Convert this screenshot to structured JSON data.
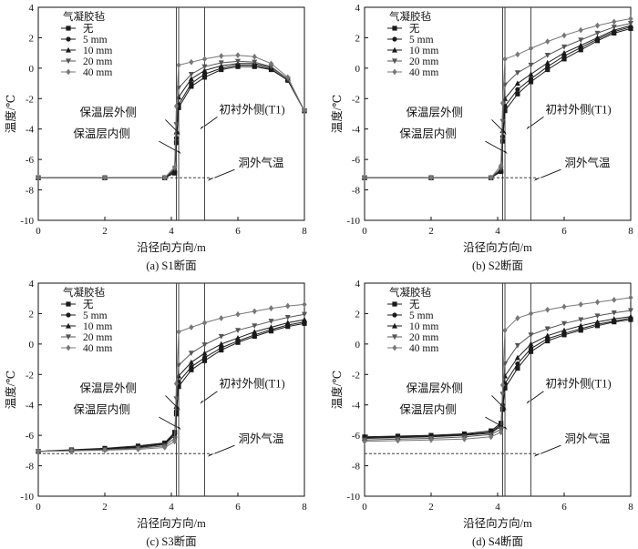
{
  "chart_data": [
    {
      "type": "line",
      "caption": "(a) S1断面",
      "xlabel": "沿径向方向/m",
      "ylabel": "温度/℃",
      "xlim": [
        0,
        8
      ],
      "ylim": [
        -10,
        4
      ],
      "xticks": [
        0,
        2,
        4,
        6,
        8
      ],
      "yticks": [
        -10,
        -8,
        -6,
        -4,
        -2,
        0,
        2,
        4
      ],
      "grid": false,
      "legend": {
        "title": "气凝胶毡",
        "placement": "top-left"
      },
      "vlines": [
        4.15,
        4.22,
        5.0
      ],
      "air_temp": -7.2,
      "annotations": [
        {
          "text": "保温层外侧",
          "point": [
            4.15,
            -4.1
          ]
        },
        {
          "text": "保温层内侧",
          "point": [
            4.12,
            -5.4
          ]
        },
        {
          "text": "初衬外侧(T1)",
          "point": [
            5.0,
            -3.8
          ]
        },
        {
          "text": "洞外气温",
          "point": [
            5.3,
            -7.2
          ]
        }
      ],
      "series": [
        {
          "name": "无",
          "marker": "square",
          "color": "#1a1a1a",
          "x": [
            0,
            2,
            3.8,
            4.1,
            4.15,
            4.22,
            4.6,
            5.0,
            5.5,
            6.0,
            6.5,
            7.0,
            7.5,
            8.0
          ],
          "y": [
            -7.2,
            -7.2,
            -7.2,
            -6.9,
            -4.9,
            -2.6,
            -1.2,
            -0.6,
            -0.1,
            0.1,
            0.1,
            -0.1,
            -0.8,
            -2.8
          ]
        },
        {
          "name": "5 mm",
          "marker": "circle",
          "color": "#1a1a1a",
          "x": [
            0,
            2,
            3.8,
            4.1,
            4.15,
            4.22,
            4.6,
            5.0,
            5.5,
            6.0,
            6.5,
            7.0,
            7.5,
            8.0
          ],
          "y": [
            -7.2,
            -7.2,
            -7.2,
            -6.8,
            -4.6,
            -2.4,
            -1.0,
            -0.4,
            0.0,
            0.2,
            0.2,
            -0.05,
            -0.8,
            -2.8
          ]
        },
        {
          "name": "10 mm",
          "marker": "triangle",
          "color": "#1a1a1a",
          "x": [
            0,
            2,
            3.8,
            4.1,
            4.15,
            4.22,
            4.6,
            5.0,
            5.5,
            6.0,
            6.5,
            7.0,
            7.5,
            8.0
          ],
          "y": [
            -7.2,
            -7.2,
            -7.2,
            -6.7,
            -4.2,
            -1.9,
            -0.7,
            -0.15,
            0.15,
            0.3,
            0.3,
            0.05,
            -0.7,
            -2.8
          ]
        },
        {
          "name": "20 mm",
          "marker": "triangle-down",
          "color": "#555555",
          "x": [
            0,
            2,
            3.8,
            4.1,
            4.15,
            4.22,
            4.6,
            5.0,
            5.5,
            6.0,
            6.5,
            7.0,
            7.5,
            8.0
          ],
          "y": [
            -7.2,
            -7.2,
            -7.2,
            -6.6,
            -3.7,
            -1.3,
            -0.4,
            0.1,
            0.35,
            0.45,
            0.4,
            0.1,
            -0.7,
            -2.8
          ]
        },
        {
          "name": "40 mm",
          "marker": "diamond",
          "color": "#777777",
          "x": [
            0,
            2,
            3.8,
            4.1,
            4.15,
            4.22,
            4.6,
            5.0,
            5.5,
            6.0,
            6.5,
            7.0,
            7.5,
            8.0
          ],
          "y": [
            -7.2,
            -7.2,
            -7.2,
            -6.5,
            -2.5,
            0.2,
            0.4,
            0.6,
            0.8,
            0.85,
            0.75,
            0.3,
            -0.6,
            -2.8
          ]
        }
      ]
    },
    {
      "type": "line",
      "caption": "(b) S2断面",
      "xlabel": "沿径向方向/m",
      "ylabel": "温度/℃",
      "xlim": [
        0,
        8
      ],
      "ylim": [
        -10,
        4
      ],
      "xticks": [
        0,
        2,
        4,
        6,
        8
      ],
      "yticks": [
        -10,
        -8,
        -6,
        -4,
        -2,
        0,
        2,
        4
      ],
      "grid": false,
      "legend": {
        "title": "气凝胶毡",
        "placement": "top-left"
      },
      "vlines": [
        4.15,
        4.22,
        5.0
      ],
      "air_temp": -7.2,
      "annotations": [
        {
          "text": "保温层外侧",
          "point": [
            4.15,
            -4.1
          ]
        },
        {
          "text": "保温层内侧",
          "point": [
            4.12,
            -5.4
          ]
        },
        {
          "text": "初衬外侧(T1)",
          "point": [
            5.0,
            -3.8
          ]
        },
        {
          "text": "洞外气温",
          "point": [
            5.3,
            -7.2
          ]
        }
      ],
      "series": [
        {
          "name": "无",
          "marker": "square",
          "color": "#1a1a1a",
          "x": [
            0,
            2,
            3.8,
            4.1,
            4.15,
            4.22,
            4.6,
            5.0,
            5.5,
            6.0,
            6.5,
            7.0,
            7.5,
            8.0
          ],
          "y": [
            -7.2,
            -7.2,
            -7.2,
            -6.8,
            -4.8,
            -2.8,
            -1.7,
            -0.9,
            -0.1,
            0.6,
            1.2,
            1.8,
            2.3,
            2.6
          ]
        },
        {
          "name": "5 mm",
          "marker": "circle",
          "color": "#1a1a1a",
          "x": [
            0,
            2,
            3.8,
            4.1,
            4.15,
            4.22,
            4.6,
            5.0,
            5.5,
            6.0,
            6.5,
            7.0,
            7.5,
            8.0
          ],
          "y": [
            -7.2,
            -7.2,
            -7.2,
            -6.8,
            -4.5,
            -2.5,
            -1.4,
            -0.7,
            0.1,
            0.8,
            1.35,
            1.9,
            2.4,
            2.7
          ]
        },
        {
          "name": "10 mm",
          "marker": "triangle",
          "color": "#1a1a1a",
          "x": [
            0,
            2,
            3.8,
            4.1,
            4.15,
            4.22,
            4.6,
            5.0,
            5.5,
            6.0,
            6.5,
            7.0,
            7.5,
            8.0
          ],
          "y": [
            -7.2,
            -7.2,
            -7.2,
            -6.7,
            -4.1,
            -2.0,
            -1.0,
            -0.4,
            0.35,
            1.0,
            1.5,
            2.0,
            2.5,
            2.8
          ]
        },
        {
          "name": "20 mm",
          "marker": "triangle-down",
          "color": "#555555",
          "x": [
            0,
            2,
            3.8,
            4.1,
            4.15,
            4.22,
            4.6,
            5.0,
            5.5,
            6.0,
            6.5,
            7.0,
            7.5,
            8.0
          ],
          "y": [
            -7.2,
            -7.2,
            -7.2,
            -6.6,
            -3.5,
            -1.1,
            -0.3,
            0.2,
            0.85,
            1.4,
            1.85,
            2.3,
            2.7,
            2.95
          ]
        },
        {
          "name": "40 mm",
          "marker": "diamond",
          "color": "#777777",
          "x": [
            0,
            2,
            3.8,
            4.1,
            4.15,
            4.22,
            4.6,
            5.0,
            5.5,
            6.0,
            6.5,
            7.0,
            7.5,
            8.0
          ],
          "y": [
            -7.2,
            -7.2,
            -7.2,
            -6.4,
            -2.3,
            0.6,
            0.9,
            1.3,
            1.75,
            2.15,
            2.5,
            2.8,
            3.05,
            3.25
          ]
        }
      ]
    },
    {
      "type": "line",
      "caption": "(c) S3断面",
      "xlabel": "沿径向方向/m",
      "ylabel": "温度/℃",
      "xlim": [
        0,
        8
      ],
      "ylim": [
        -10,
        4
      ],
      "xticks": [
        0,
        2,
        4,
        6,
        8
      ],
      "yticks": [
        -10,
        -8,
        -6,
        -4,
        -2,
        0,
        2,
        4
      ],
      "grid": false,
      "legend": {
        "title": "气凝胶毡",
        "placement": "top-left"
      },
      "vlines": [
        4.15,
        4.22,
        5.0
      ],
      "air_temp": -7.2,
      "annotations": [
        {
          "text": "保温层外侧",
          "point": [
            4.15,
            -4.1
          ]
        },
        {
          "text": "保温层内侧",
          "point": [
            4.12,
            -5.4
          ]
        },
        {
          "text": "初衬外侧(T1)",
          "point": [
            5.0,
            -3.7
          ]
        },
        {
          "text": "洞外气温",
          "point": [
            5.3,
            -7.2
          ]
        }
      ],
      "series": [
        {
          "name": "无",
          "marker": "square",
          "color": "#1a1a1a",
          "x": [
            0,
            1,
            2,
            3,
            3.8,
            4.1,
            4.15,
            4.22,
            4.6,
            5.0,
            5.5,
            6.0,
            6.5,
            7.0,
            7.5,
            8.0
          ],
          "y": [
            -7.05,
            -6.95,
            -6.85,
            -6.7,
            -6.5,
            -5.8,
            -4.6,
            -2.8,
            -1.7,
            -1.1,
            -0.4,
            0.1,
            0.5,
            0.85,
            1.15,
            1.35
          ]
        },
        {
          "name": "5 mm",
          "marker": "circle",
          "color": "#1a1a1a",
          "x": [
            0,
            1,
            2,
            3,
            3.8,
            4.1,
            4.15,
            4.22,
            4.6,
            5.0,
            5.5,
            6.0,
            6.5,
            7.0,
            7.5,
            8.0
          ],
          "y": [
            -7.05,
            -6.97,
            -6.88,
            -6.75,
            -6.55,
            -5.9,
            -4.4,
            -2.5,
            -1.5,
            -0.9,
            -0.25,
            0.2,
            0.6,
            0.95,
            1.25,
            1.45
          ]
        },
        {
          "name": "10 mm",
          "marker": "triangle",
          "color": "#1a1a1a",
          "x": [
            0,
            1,
            2,
            3,
            3.8,
            4.1,
            4.15,
            4.22,
            4.6,
            5.0,
            5.5,
            6.0,
            6.5,
            7.0,
            7.5,
            8.0
          ],
          "y": [
            -7.05,
            -6.98,
            -6.9,
            -6.8,
            -6.6,
            -6.0,
            -4.1,
            -2.1,
            -1.2,
            -0.6,
            0.0,
            0.4,
            0.8,
            1.1,
            1.4,
            1.6
          ]
        },
        {
          "name": "20 mm",
          "marker": "triangle-down",
          "color": "#555555",
          "x": [
            0,
            1,
            2,
            3,
            3.8,
            4.1,
            4.15,
            4.22,
            4.6,
            5.0,
            5.5,
            6.0,
            6.5,
            7.0,
            7.5,
            8.0
          ],
          "y": [
            -7.05,
            -7.0,
            -6.95,
            -6.85,
            -6.7,
            -6.2,
            -3.6,
            -1.4,
            -0.6,
            -0.05,
            0.5,
            0.9,
            1.2,
            1.5,
            1.75,
            1.95
          ]
        },
        {
          "name": "40 mm",
          "marker": "diamond",
          "color": "#777777",
          "x": [
            0,
            1,
            2,
            3,
            3.8,
            4.1,
            4.15,
            4.22,
            4.6,
            5.0,
            5.5,
            6.0,
            6.5,
            7.0,
            7.5,
            8.0
          ],
          "y": [
            -7.05,
            -7.02,
            -6.98,
            -6.92,
            -6.8,
            -6.4,
            -2.6,
            0.8,
            1.1,
            1.4,
            1.7,
            1.95,
            2.15,
            2.35,
            2.5,
            2.6
          ]
        }
      ]
    },
    {
      "type": "line",
      "caption": "(d) S4断面",
      "xlabel": "沿径向方向/m",
      "ylabel": "温度/℃",
      "xlim": [
        0,
        8
      ],
      "ylim": [
        -10,
        4
      ],
      "xticks": [
        0,
        2,
        4,
        6,
        8
      ],
      "yticks": [
        -10,
        -8,
        -6,
        -4,
        -2,
        0,
        2,
        4
      ],
      "grid": false,
      "legend": {
        "title": "气凝胶毡",
        "placement": "top-left"
      },
      "vlines": [
        4.15,
        4.22,
        5.0
      ],
      "air_temp": -7.2,
      "annotations": [
        {
          "text": "保温层外侧",
          "point": [
            4.15,
            -4.1
          ]
        },
        {
          "text": "保温层内侧",
          "point": [
            4.12,
            -5.4
          ]
        },
        {
          "text": "初衬外侧(T1)",
          "point": [
            5.0,
            -3.7
          ]
        },
        {
          "text": "洞外气温",
          "point": [
            5.3,
            -7.2
          ]
        }
      ],
      "series": [
        {
          "name": "无",
          "marker": "square",
          "color": "#1a1a1a",
          "x": [
            0,
            1,
            2,
            3,
            3.8,
            4.1,
            4.15,
            4.22,
            4.6,
            5.0,
            5.5,
            6.0,
            6.5,
            7.0,
            7.5,
            8.0
          ],
          "y": [
            -6.1,
            -6.05,
            -6.0,
            -5.9,
            -5.7,
            -5.2,
            -4.3,
            -2.9,
            -1.6,
            -0.5,
            0.2,
            0.6,
            0.9,
            1.2,
            1.45,
            1.6
          ]
        },
        {
          "name": "5 mm",
          "marker": "circle",
          "color": "#1a1a1a",
          "x": [
            0,
            1,
            2,
            3,
            3.8,
            4.1,
            4.15,
            4.22,
            4.6,
            5.0,
            5.5,
            6.0,
            6.5,
            7.0,
            7.5,
            8.0
          ],
          "y": [
            -6.15,
            -6.1,
            -6.05,
            -5.95,
            -5.8,
            -5.3,
            -4.2,
            -2.6,
            -1.3,
            -0.3,
            0.35,
            0.7,
            1.0,
            1.3,
            1.5,
            1.7
          ]
        },
        {
          "name": "10 mm",
          "marker": "triangle",
          "color": "#1a1a1a",
          "x": [
            0,
            1,
            2,
            3,
            3.8,
            4.1,
            4.15,
            4.22,
            4.6,
            5.0,
            5.5,
            6.0,
            6.5,
            7.0,
            7.5,
            8.0
          ],
          "y": [
            -6.2,
            -6.15,
            -6.1,
            -6.0,
            -5.85,
            -5.4,
            -3.9,
            -2.1,
            -0.9,
            0.0,
            0.55,
            0.9,
            1.2,
            1.45,
            1.65,
            1.8
          ]
        },
        {
          "name": "20 mm",
          "marker": "triangle-down",
          "color": "#555555",
          "x": [
            0,
            1,
            2,
            3,
            3.8,
            4.1,
            4.15,
            4.22,
            4.6,
            5.0,
            5.5,
            6.0,
            6.5,
            7.0,
            7.5,
            8.0
          ],
          "y": [
            -6.3,
            -6.25,
            -6.2,
            -6.1,
            -5.95,
            -5.6,
            -3.3,
            -1.3,
            -0.1,
            0.6,
            1.0,
            1.35,
            1.6,
            1.85,
            2.05,
            2.2
          ]
        },
        {
          "name": "40 mm",
          "marker": "diamond",
          "color": "#777777",
          "x": [
            0,
            1,
            2,
            3,
            3.8,
            4.1,
            4.15,
            4.22,
            4.6,
            5.0,
            5.5,
            6.0,
            6.5,
            7.0,
            7.5,
            8.0
          ],
          "y": [
            -6.4,
            -6.35,
            -6.3,
            -6.25,
            -6.1,
            -5.8,
            -2.7,
            0.9,
            1.7,
            2.0,
            2.25,
            2.45,
            2.6,
            2.75,
            2.9,
            3.05
          ]
        }
      ]
    }
  ]
}
